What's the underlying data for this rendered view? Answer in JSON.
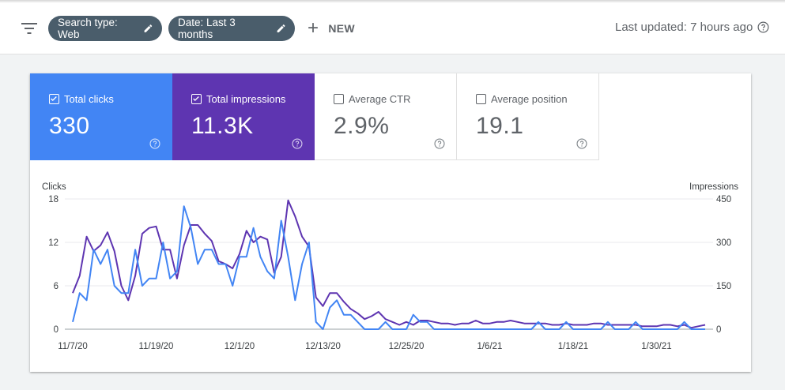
{
  "toolbar": {
    "filter_icon": "filter-list-icon",
    "chips": [
      {
        "label": "Search type: Web",
        "icon": "pencil-icon"
      },
      {
        "label": "Date: Last 3 months",
        "icon": "pencil-icon"
      }
    ],
    "new_label": "NEW",
    "new_icon": "plus-icon",
    "last_updated": "Last updated: 7 hours ago"
  },
  "metrics": [
    {
      "label": "Total clicks",
      "value": "330",
      "checked": true,
      "color": "#4285f4"
    },
    {
      "label": "Total impressions",
      "value": "11.3K",
      "checked": true,
      "color": "#5e35b1"
    },
    {
      "label": "Average CTR",
      "value": "2.9%",
      "checked": false
    },
    {
      "label": "Average position",
      "value": "19.1",
      "checked": false
    }
  ],
  "chart_data": {
    "type": "line",
    "ylabel": "Clicks",
    "ylabel_right": "Impressions",
    "yticks_left": [
      0,
      6,
      12,
      18
    ],
    "yticks_right": [
      0,
      150,
      300,
      450
    ],
    "ylim_left": [
      0,
      18
    ],
    "ylim_right": [
      0,
      450
    ],
    "xlabels": [
      "11/7/20",
      "11/19/20",
      "12/1/20",
      "12/13/20",
      "12/25/20",
      "1/6/21",
      "1/18/21",
      "1/30/21"
    ],
    "grid": true,
    "series": [
      {
        "name": "Clicks",
        "axis": "left",
        "color": "#4285f4",
        "values": [
          1,
          5,
          4,
          11,
          9,
          11,
          6,
          5,
          5,
          11,
          6,
          7,
          7,
          12,
          7,
          8,
          17,
          14,
          9,
          11,
          11,
          9,
          9,
          6,
          10,
          10,
          14,
          10,
          8,
          7,
          15,
          10,
          4,
          9,
          12,
          1,
          0,
          3,
          4,
          2,
          2,
          1,
          0,
          0,
          0,
          1,
          0,
          0,
          0,
          2,
          1,
          1,
          0,
          0,
          0,
          0,
          0,
          0,
          0,
          0,
          0,
          0,
          0,
          0,
          0,
          0,
          0,
          1,
          0,
          0,
          0,
          1,
          0,
          0,
          0,
          0,
          0,
          1,
          0,
          0,
          0,
          1,
          0,
          0,
          0,
          0,
          0,
          0,
          1,
          0,
          0,
          0
        ]
      },
      {
        "name": "Impressions",
        "axis": "right",
        "color": "#5e35b1",
        "values": [
          125,
          185,
          320,
          270,
          290,
          335,
          270,
          150,
          100,
          185,
          330,
          350,
          355,
          275,
          275,
          175,
          290,
          360,
          360,
          330,
          305,
          235,
          225,
          210,
          260,
          340,
          300,
          320,
          310,
          195,
          250,
          445,
          390,
          320,
          285,
          110,
          80,
          125,
          125,
          95,
          70,
          55,
          35,
          45,
          60,
          35,
          25,
          15,
          25,
          15,
          30,
          30,
          25,
          20,
          20,
          15,
          20,
          20,
          30,
          20,
          20,
          25,
          25,
          30,
          25,
          20,
          20,
          20,
          20,
          15,
          15,
          20,
          15,
          15,
          15,
          20,
          20,
          15,
          15,
          15,
          15,
          15,
          10,
          10,
          10,
          15,
          15,
          10,
          15,
          5,
          10,
          15
        ]
      }
    ]
  }
}
